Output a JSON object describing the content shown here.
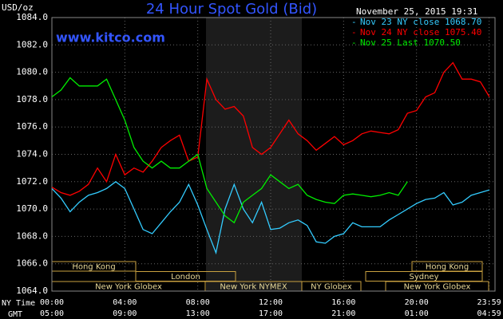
{
  "chart_data": {
    "type": "line",
    "title": "24 Hour Spot Gold (Bid)",
    "unit_label": "USD/oz",
    "site": "www.kitco.com",
    "timestamp": "November 25, 2015 19:31",
    "x": [
      0,
      0.5,
      1,
      1.5,
      2,
      2.5,
      3,
      3.5,
      4,
      4.5,
      5,
      5.5,
      6,
      6.5,
      7,
      7.5,
      8,
      8.5,
      9,
      9.5,
      10,
      10.5,
      11,
      11.5,
      12,
      12.5,
      13,
      13.5,
      14,
      14.5,
      15,
      15.5,
      16,
      16.5,
      17,
      17.5,
      18,
      18.5,
      19,
      19.5,
      20,
      20.5,
      21,
      21.5,
      22,
      22.5,
      23,
      23.5,
      24
    ],
    "series": [
      {
        "name": "Nov 23 NY close 1068.70",
        "color": "#33ccff",
        "values": [
          1071.5,
          1070.8,
          1069.8,
          1070.5,
          1071,
          1071.2,
          1071.5,
          1072,
          1071.5,
          1070,
          1068.5,
          1068.2,
          1069,
          1069.8,
          1070.5,
          1071.8,
          1070.3,
          1068.5,
          1066.8,
          1070,
          1071.8,
          1070,
          1069,
          1070.5,
          1068.5,
          1068.6,
          1069,
          1069.2,
          1068.8,
          1067.6,
          1067.5,
          1068,
          1068.2,
          1069,
          1068.7,
          1068.7,
          1068.7,
          1069.2,
          1069.6,
          1070,
          1070.4,
          1070.7,
          1070.8,
          1071.2,
          1070.3,
          1070.5,
          1071,
          1071.2,
          1071.4
        ]
      },
      {
        "name": "Nov 24 NY close 1075.40",
        "color": "#ff0000",
        "values": [
          1071.6,
          1071.2,
          1071,
          1071.3,
          1071.8,
          1073,
          1072,
          1074,
          1072.5,
          1073,
          1072.7,
          1073.5,
          1074.5,
          1075,
          1075.4,
          1073.5,
          1073.8,
          1079.5,
          1078,
          1077.3,
          1077.5,
          1076.8,
          1074.5,
          1074,
          1074.5,
          1075.5,
          1076.5,
          1075.5,
          1075,
          1074.3,
          1074.8,
          1075.3,
          1074.7,
          1075,
          1075.5,
          1075.7,
          1075.6,
          1075.5,
          1075.8,
          1077,
          1077.2,
          1078.2,
          1078.5,
          1080,
          1080.7,
          1079.5,
          1079.5,
          1079.3,
          1078.2
        ]
      },
      {
        "name": "Nov 25 Last 1070.50",
        "color": "#00ee00",
        "values": [
          1078.2,
          1078.7,
          1079.6,
          1079,
          1079,
          1079,
          1079.5,
          1078,
          1076.5,
          1074.5,
          1073.5,
          1073,
          1073.5,
          1073,
          1073,
          1073.5,
          1074,
          1071.5,
          1070.5,
          1069.5,
          1069,
          1070.5,
          1071,
          1071.5,
          1072.5,
          1072,
          1071.5,
          1071.8,
          1071,
          1070.7,
          1070.5,
          1070.4,
          1071,
          1071.1,
          1071,
          1070.9,
          1071,
          1071.2,
          1071,
          1072,
          null,
          null,
          null,
          null,
          null,
          null,
          null,
          null,
          null
        ]
      }
    ],
    "xlim": [
      0,
      24
    ],
    "ylim": [
      1064,
      1084
    ],
    "yticks": [
      {
        "value": 1064,
        "label": "1064.0"
      },
      {
        "value": 1066,
        "label": "1066.0"
      },
      {
        "value": 1068,
        "label": "1068.0"
      },
      {
        "value": 1070,
        "label": "1070.0"
      },
      {
        "value": 1072,
        "label": "1072.0"
      },
      {
        "value": 1074,
        "label": "1074.0"
      },
      {
        "value": 1076,
        "label": "1076.0"
      },
      {
        "value": 1078,
        "label": "1078.0"
      },
      {
        "value": 1080,
        "label": "1080.0"
      },
      {
        "value": 1082,
        "label": "1082.0"
      },
      {
        "value": 1084,
        "label": "1084.0"
      }
    ],
    "xticks": [
      {
        "value": 0,
        "label": "00:00"
      },
      {
        "value": 4,
        "label": "04:00"
      },
      {
        "value": 8,
        "label": "08:00"
      },
      {
        "value": 12,
        "label": "12:00"
      },
      {
        "value": 16,
        "label": "16:00"
      },
      {
        "value": 20,
        "label": "20:00"
      },
      {
        "value": 23.983,
        "label": "23:59"
      }
    ],
    "x_axis_label": "NY Time",
    "x2_axis_label": "GMT",
    "x2ticks": [
      "05:00",
      "09:00",
      "13:00",
      "17:00",
      "21:00",
      "01:00",
      "04:59"
    ],
    "sessions": [
      "Hong Kong",
      "London",
      "New York Globex",
      "New York NYMEX",
      "NY Globex",
      "Sydney",
      "Hong Kong",
      "New York Globex"
    ],
    "grid": true
  }
}
